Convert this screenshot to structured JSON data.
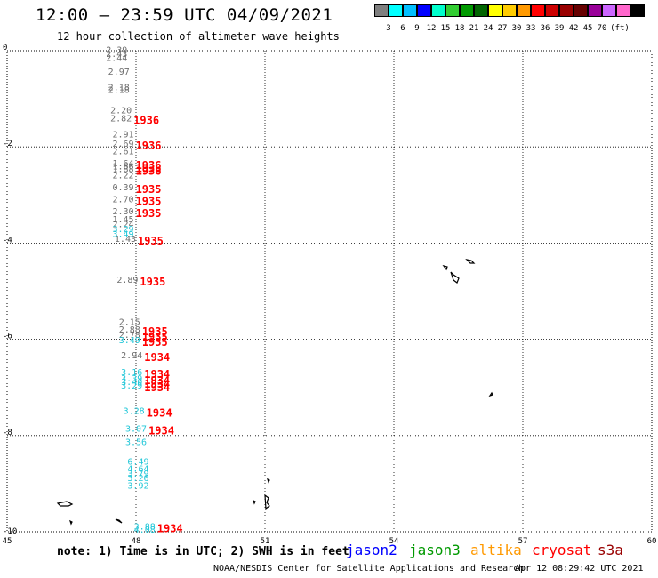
{
  "title": "12:00 – 23:59 UTC 04/09/2021",
  "subtitle": "12 hour collection of altimeter wave heights",
  "colorbar": {
    "colors": [
      "#7f7f7f",
      "#00ffff",
      "#00bfff",
      "#0000ff",
      "#00ffcc",
      "#32cd32",
      "#009900",
      "#006400",
      "#ffff00",
      "#ffcc00",
      "#ff9900",
      "#ff0000",
      "#cc0000",
      "#990000",
      "#660000",
      "#990099",
      "#cc66ff",
      "#ff66cc",
      "#000000"
    ],
    "labels": [
      "3",
      "6",
      "9",
      "12",
      "15",
      "18",
      "21",
      "24",
      "27",
      "30",
      "33",
      "36",
      "39",
      "42",
      "45",
      "70",
      "(ft)"
    ]
  },
  "axes": {
    "x_ticks": [
      "45",
      "48",
      "51",
      "54",
      "57",
      "60"
    ],
    "y_ticks": [
      "0",
      "-2",
      "-4",
      "-6",
      "-8",
      "-10"
    ]
  },
  "observations": {
    "gray": [
      {
        "lon": 47.8,
        "lat": -0.05,
        "v": "2.39"
      },
      {
        "lon": 47.8,
        "lat": -0.13,
        "v": "2.43"
      },
      {
        "lon": 47.8,
        "lat": -0.21,
        "v": "2.44"
      },
      {
        "lon": 47.85,
        "lat": -0.5,
        "v": "2.97"
      },
      {
        "lon": 47.85,
        "lat": -0.82,
        "v": "2.18"
      },
      {
        "lon": 47.85,
        "lat": -0.88,
        "v": "2.18"
      },
      {
        "lon": 47.9,
        "lat": -1.3,
        "v": "2.20"
      },
      {
        "lon": 47.9,
        "lat": -1.47,
        "v": "2.82",
        "t": "1936"
      },
      {
        "lon": 47.95,
        "lat": -1.8,
        "v": "2.91"
      },
      {
        "lon": 47.95,
        "lat": -2.0,
        "v": "2.69",
        "t": "1936"
      },
      {
        "lon": 47.95,
        "lat": -2.15,
        "v": "2.61"
      },
      {
        "lon": 47.95,
        "lat": -2.4,
        "v": "1.64",
        "t": "1936"
      },
      {
        "lon": 47.95,
        "lat": -2.47,
        "v": "1.66",
        "t": "1936"
      },
      {
        "lon": 47.95,
        "lat": -2.52,
        "v": "1.88",
        "t": "1936"
      },
      {
        "lon": 47.95,
        "lat": -2.65,
        "v": "2.22"
      },
      {
        "lon": 47.95,
        "lat": -2.9,
        "v": "0.39",
        "t": "1935"
      },
      {
        "lon": 47.95,
        "lat": -3.15,
        "v": "2.70",
        "t": "1935"
      },
      {
        "lon": 47.95,
        "lat": -3.4,
        "v": "2.30",
        "t": "1935"
      },
      {
        "lon": 47.95,
        "lat": -3.57,
        "v": "1.45"
      },
      {
        "lon": 47.95,
        "lat": -3.67,
        "v": "2.24"
      },
      {
        "lon": 48.0,
        "lat": -3.97,
        "v": "1.43",
        "t": "1935"
      },
      {
        "lon": 48.05,
        "lat": -4.82,
        "v": "2.89",
        "t": "1935"
      },
      {
        "lon": 48.1,
        "lat": -5.7,
        "v": "2.15"
      },
      {
        "lon": 48.1,
        "lat": -5.86,
        "v": "2.88",
        "t": "1935"
      },
      {
        "lon": 48.1,
        "lat": -5.97,
        "v": "2.78",
        "t": "1935"
      },
      {
        "lon": 48.15,
        "lat": -6.4,
        "v": "2.94",
        "t": "1934"
      }
    ],
    "cyan": [
      {
        "lon": 47.95,
        "lat": -3.77,
        "v": "3.29"
      },
      {
        "lon": 47.95,
        "lat": -3.87,
        "v": "3.49"
      },
      {
        "lon": 48.1,
        "lat": -6.08,
        "v": "3.49",
        "t": "1935"
      },
      {
        "lon": 48.15,
        "lat": -6.75,
        "v": "3.16",
        "t": "1934"
      },
      {
        "lon": 48.15,
        "lat": -6.88,
        "v": "3.39",
        "t": "1934"
      },
      {
        "lon": 48.15,
        "lat": -6.95,
        "v": "3.40",
        "t": "1934"
      },
      {
        "lon": 48.15,
        "lat": -7.02,
        "v": "3.29",
        "t": "1934"
      },
      {
        "lon": 48.2,
        "lat": -7.55,
        "v": "3.28",
        "t": "1934"
      },
      {
        "lon": 48.25,
        "lat": -7.92,
        "v": "3.07",
        "t": "1934"
      },
      {
        "lon": 48.25,
        "lat": -8.2,
        "v": "3.56"
      },
      {
        "lon": 48.3,
        "lat": -8.6,
        "v": "6.49"
      },
      {
        "lon": 48.3,
        "lat": -8.75,
        "v": "4.64"
      },
      {
        "lon": 48.3,
        "lat": -8.85,
        "v": "3.79"
      },
      {
        "lon": 48.3,
        "lat": -8.95,
        "v": "3.26"
      },
      {
        "lon": 48.3,
        "lat": -9.1,
        "v": "3.92"
      },
      {
        "lon": 48.45,
        "lat": -9.95,
        "v": "3.88",
        "t": "1934"
      },
      {
        "lon": 48.45,
        "lat": -10.02,
        "v": "4.08"
      }
    ]
  },
  "legend": {
    "note": "note:  1) Time is in UTC;  2) SWH is in feet",
    "satellites": [
      {
        "name": "jason2",
        "color": "#0000ff"
      },
      {
        "name": "jason3",
        "color": "#009900"
      },
      {
        "name": "altika",
        "color": "#ff9900"
      },
      {
        "name": "cryosat",
        "color": "#ff0000"
      },
      {
        "name": "s3a",
        "color": "#990000"
      }
    ]
  },
  "footer": {
    "credit": "NOAA/NESDIS Center for Satellite Applications and Research",
    "timestamp": "Apr 12 08:29:42 UTC 2021"
  }
}
